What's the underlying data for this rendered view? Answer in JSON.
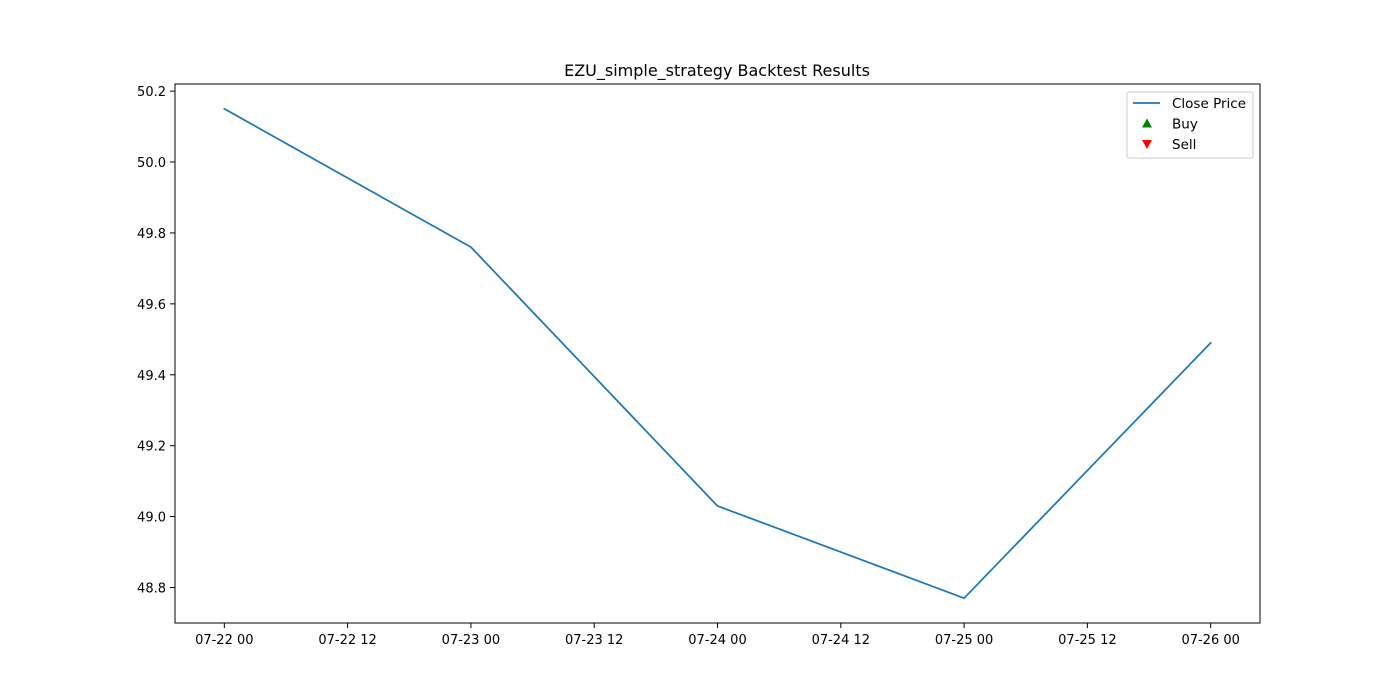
{
  "chart_data": {
    "type": "line",
    "title": "EZU_simple_strategy Backtest Results",
    "xlabel": "",
    "ylabel": "",
    "x_tick_labels": [
      "07-22 00",
      "07-22 12",
      "07-23 00",
      "07-23 12",
      "07-24 00",
      "07-24 12",
      "07-25 00",
      "07-25 12",
      "07-26 00"
    ],
    "x_tick_values": [
      "2024-07-22 00:00",
      "2024-07-22 12:00",
      "2024-07-23 00:00",
      "2024-07-23 12:00",
      "2024-07-24 00:00",
      "2024-07-24 12:00",
      "2024-07-25 00:00",
      "2024-07-25 12:00",
      "2024-07-26 00:00"
    ],
    "xlim": [
      "2024-07-21 19:12",
      "2024-07-26 04:48"
    ],
    "y_ticks": [
      48.8,
      49.0,
      49.2,
      49.4,
      49.6,
      49.8,
      50.0,
      50.2
    ],
    "y_tick_labels": [
      "48.8",
      "49.0",
      "49.2",
      "49.4",
      "49.6",
      "49.8",
      "50.0",
      "50.2"
    ],
    "ylim": [
      48.7,
      50.22
    ],
    "grid": false,
    "legend_position": "top-right",
    "series": [
      {
        "name": "Close Price",
        "kind": "line",
        "color": "#1f77b4",
        "x": [
          "2024-07-22 00:00",
          "2024-07-23 00:00",
          "2024-07-24 00:00",
          "2024-07-25 00:00",
          "2024-07-26 00:00"
        ],
        "y": [
          50.15,
          49.76,
          49.03,
          48.77,
          49.49
        ]
      },
      {
        "name": "Buy",
        "kind": "marker",
        "marker": "triangle-up",
        "color": "#008000",
        "x": [],
        "y": []
      },
      {
        "name": "Sell",
        "kind": "marker",
        "marker": "triangle-down",
        "color": "#ff0000",
        "x": [],
        "y": []
      }
    ]
  }
}
